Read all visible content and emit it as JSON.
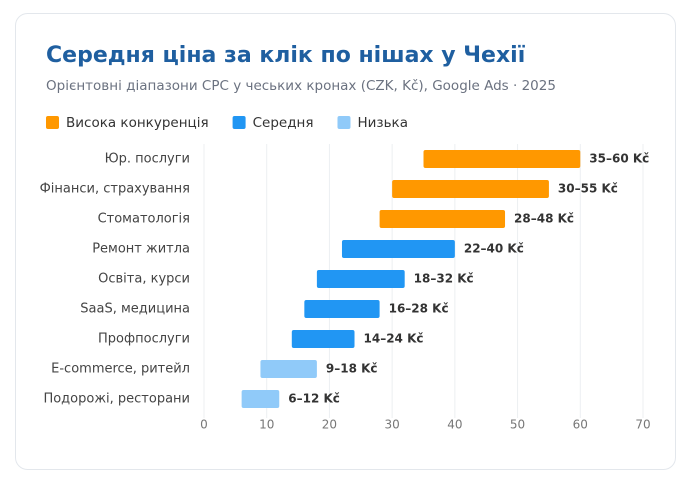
{
  "chart_data": {
    "type": "range-bar",
    "title": "Середня ціна за клік по нішах у Чехії",
    "subtitle": "Орієнтовні діапазони CPC у чеських кронах (CZK, Kč), Google Ads · 2025",
    "categories": [
      "Юр. послуги",
      "Фінанси, страхування",
      "Стоматологія",
      "Ремонт житла",
      "Освіта, курси",
      "SaaS, медицина",
      "Профпослуги",
      "E-commerce, ритейл",
      "Подорожі, ресторани"
    ],
    "series": [
      {
        "name": "Висока конкуренція",
        "color": "#ff9800",
        "low": [
          35,
          30,
          28,
          null,
          null,
          null,
          null,
          null,
          null
        ],
        "high": [
          60,
          55,
          48,
          null,
          null,
          null,
          null,
          null,
          null
        ],
        "value_labels": [
          "35–60 Kč",
          "30–55 Kč",
          "28–48 Kč",
          null,
          null,
          null,
          null,
          null,
          null
        ]
      },
      {
        "name": "Середня",
        "color": "#2196f3",
        "low": [
          null,
          null,
          null,
          22,
          18,
          16,
          14,
          null,
          null
        ],
        "high": [
          null,
          null,
          null,
          40,
          32,
          28,
          24,
          null,
          null
        ],
        "value_labels": [
          null,
          null,
          null,
          "22–40 Kč",
          "18–32 Kč",
          "16–28 Kč",
          "14–24 Kč",
          null,
          null
        ]
      },
      {
        "name": "Низька",
        "color": "#90caf9",
        "low": [
          null,
          null,
          null,
          null,
          null,
          null,
          null,
          9,
          6
        ],
        "high": [
          null,
          null,
          null,
          null,
          null,
          null,
          null,
          18,
          12
        ],
        "value_labels": [
          null,
          null,
          null,
          null,
          null,
          null,
          null,
          "9–18 Kč",
          "6–12 Kč"
        ]
      }
    ],
    "xlim": [
      0,
      70
    ],
    "xticks": [
      0,
      10,
      20,
      30,
      40,
      50,
      60,
      70
    ],
    "grid": true
  }
}
